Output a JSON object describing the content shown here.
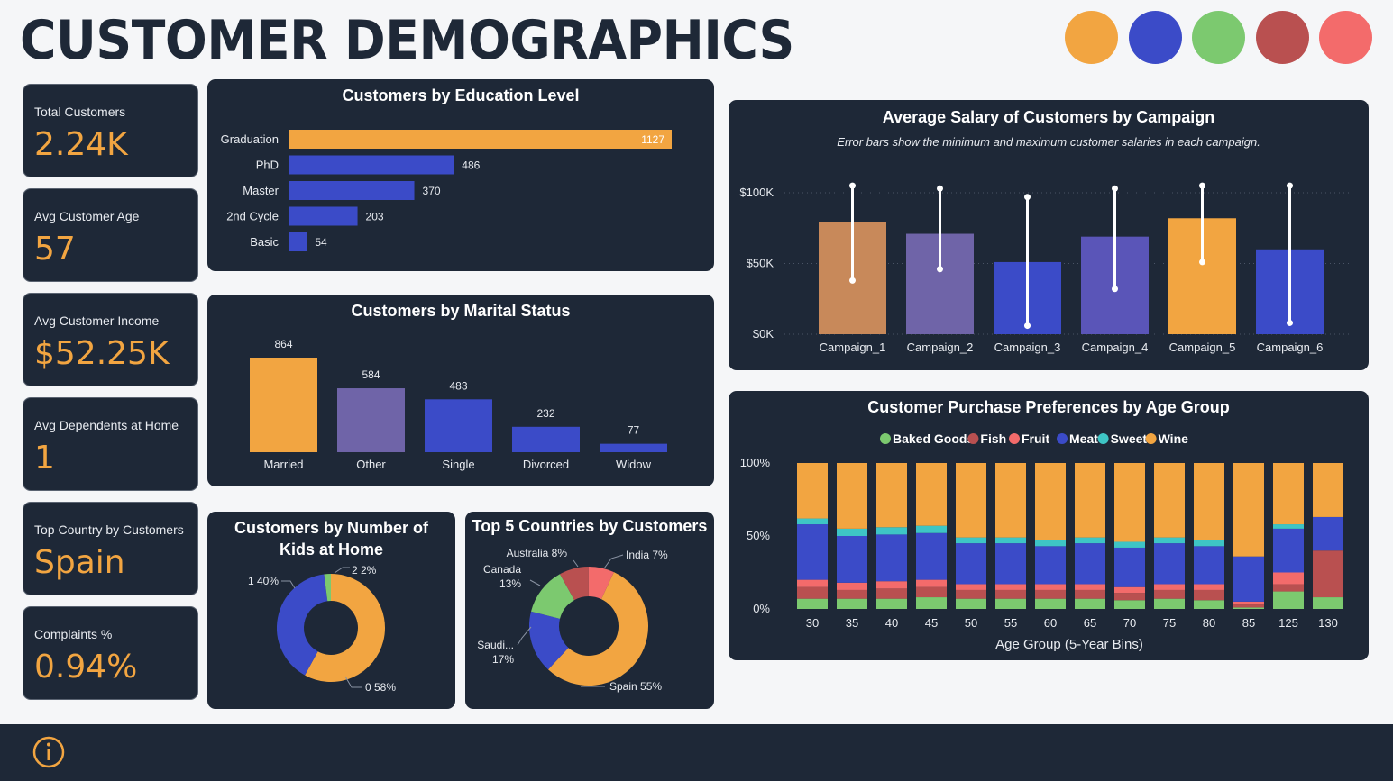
{
  "header": {
    "title": "CUSTOMER DEMOGRAPHICS",
    "palette": [
      "#f2a541",
      "#3b4bc8",
      "#7cc96f",
      "#b95050",
      "#f36b6b"
    ]
  },
  "kpis": [
    {
      "label": "Total Customers",
      "value": "2.24K"
    },
    {
      "label": "Avg Customer Age",
      "value": "57"
    },
    {
      "label": "Avg Customer Income",
      "value": "$52.25K"
    },
    {
      "label": "Avg Dependents at Home",
      "value": "1"
    },
    {
      "label": "Top Country by Customers",
      "value": "Spain"
    },
    {
      "label": "Complaints %",
      "value": "0.94%"
    }
  ],
  "chart_data": [
    {
      "type": "bar",
      "orientation": "horizontal",
      "title": "Customers by Education Level",
      "categories": [
        "Graduation",
        "PhD",
        "Master",
        "2nd Cycle",
        "Basic"
      ],
      "values": [
        1127,
        486,
        370,
        203,
        54
      ],
      "colors": [
        "#f2a541",
        "#3b4bc8",
        "#3b4bc8",
        "#3b4bc8",
        "#3b4bc8"
      ]
    },
    {
      "type": "bar",
      "title": "Customers by Marital Status",
      "categories": [
        "Married",
        "Other",
        "Single",
        "Divorced",
        "Widow"
      ],
      "values": [
        864,
        584,
        483,
        232,
        77
      ],
      "colors": [
        "#f2a541",
        "#6f64a8",
        "#3b4bc8",
        "#3b4bc8",
        "#3b4bc8"
      ]
    },
    {
      "type": "pie",
      "title": "Customers by Number of Kids at Home",
      "slices": [
        {
          "label": "0",
          "value": 58,
          "display": "0 58%",
          "color": "#f2a541"
        },
        {
          "label": "1",
          "value": 40,
          "display": "1 40%",
          "color": "#3b4bc8"
        },
        {
          "label": "2",
          "value": 2,
          "display": "2 2%",
          "color": "#7cc96f"
        }
      ]
    },
    {
      "type": "pie",
      "title": "Top 5 Countries by Customers",
      "slices": [
        {
          "label": "Spain",
          "value": 55,
          "display": "Spain 55%",
          "color": "#f2a541"
        },
        {
          "label": "Saudi...",
          "value": 17,
          "display": "Saudi... 17%",
          "color": "#3b4bc8"
        },
        {
          "label": "Canada",
          "value": 13,
          "display": "Canada 13%",
          "color": "#7cc96f"
        },
        {
          "label": "Australia",
          "value": 8,
          "display": "Australia 8%",
          "color": "#b95050"
        },
        {
          "label": "India",
          "value": 7,
          "display": "India 7%",
          "color": "#f36b6b"
        }
      ]
    },
    {
      "type": "bar",
      "title": "Average Salary of Customers by Campaign",
      "subtitle": "Error bars show the minimum and maximum customer salaries in each campaign.",
      "categories": [
        "Campaign_1",
        "Campaign_2",
        "Campaign_3",
        "Campaign_4",
        "Campaign_5",
        "Campaign_6"
      ],
      "values": [
        79000,
        71000,
        51000,
        69000,
        82000,
        60000
      ],
      "min": [
        38000,
        46000,
        6000,
        32000,
        51000,
        8000
      ],
      "max": [
        105000,
        103000,
        97000,
        103000,
        105000,
        105000
      ],
      "colors": [
        "#c8895a",
        "#6f64a8",
        "#3b4bc8",
        "#5a55b8",
        "#f2a541",
        "#3b4bc8"
      ],
      "ylim": [
        0,
        110000
      ],
      "yticks": [
        {
          "v": 0,
          "label": "$0K"
        },
        {
          "v": 50000,
          "label": "$50K"
        },
        {
          "v": 100000,
          "label": "$100K"
        }
      ],
      "grid": true
    },
    {
      "type": "bar",
      "stacked": "percent",
      "title": "Customer Purchase Preferences by Age Group",
      "xlabel": "Age Group (5-Year Bins)",
      "legend_position": "top",
      "categories": [
        "30",
        "35",
        "40",
        "45",
        "50",
        "55",
        "60",
        "65",
        "70",
        "75",
        "80",
        "85",
        "125",
        "130"
      ],
      "series": [
        {
          "name": "Baked Goods",
          "color": "#7cc96f",
          "values": [
            7,
            7,
            7,
            8,
            7,
            7,
            7,
            7,
            6,
            7,
            6,
            1,
            12,
            8
          ]
        },
        {
          "name": "Fish",
          "color": "#b95050",
          "values": [
            8,
            6,
            7,
            7,
            6,
            6,
            6,
            6,
            5,
            6,
            7,
            2,
            5,
            32
          ]
        },
        {
          "name": "Fruit",
          "color": "#f36b6b",
          "values": [
            5,
            5,
            5,
            5,
            4,
            4,
            4,
            4,
            4,
            4,
            4,
            2,
            8,
            0
          ]
        },
        {
          "name": "Meat",
          "color": "#3b4bc8",
          "values": [
            38,
            32,
            32,
            32,
            28,
            28,
            26,
            28,
            27,
            28,
            26,
            31,
            30,
            23
          ]
        },
        {
          "name": "Sweet",
          "color": "#3ec5c5",
          "values": [
            4,
            5,
            5,
            5,
            4,
            4,
            4,
            4,
            4,
            4,
            4,
            0,
            3,
            0
          ]
        },
        {
          "name": "Wine",
          "color": "#f2a541",
          "values": [
            38,
            45,
            44,
            43,
            51,
            51,
            53,
            51,
            54,
            51,
            53,
            64,
            42,
            37
          ]
        }
      ],
      "yticks": [
        "0%",
        "50%",
        "100%"
      ]
    }
  ]
}
